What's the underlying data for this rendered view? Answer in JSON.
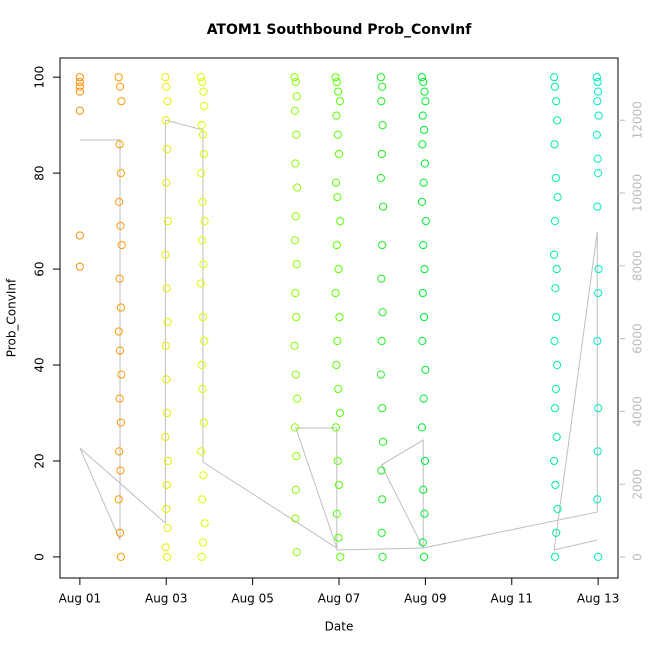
{
  "chart_data": {
    "type": "scatter",
    "title": "ATOM1 Southbound Prob_ConvInf",
    "x_label": "Date",
    "y_label": "Prob_ConvInf",
    "xlim": [
      -0.46,
      12.46
    ],
    "ylim": [
      -4.4,
      104
    ],
    "y2lim": [
      -577,
      13709
    ],
    "xticks": [
      {
        "value": 0,
        "label": "Aug 01"
      },
      {
        "value": 2,
        "label": "Aug 03"
      },
      {
        "value": 4,
        "label": "Aug 05"
      },
      {
        "value": 6,
        "label": "Aug 07"
      },
      {
        "value": 8,
        "label": "Aug 09"
      },
      {
        "value": 10,
        "label": "Aug 11"
      },
      {
        "value": 12,
        "label": "Aug 13"
      }
    ],
    "yticks": [
      0,
      20,
      40,
      60,
      80,
      100
    ],
    "y2ticks": [
      0,
      2000,
      4000,
      6000,
      8000,
      10000,
      12000
    ],
    "y2color": "#bbbbbb",
    "series": [
      {
        "color": "#ff8c00",
        "x": [
          0,
          0,
          0,
          0,
          0,
          0,
          0
        ],
        "values": [
          100,
          99,
          98,
          97,
          93,
          67,
          60.5
        ]
      },
      {
        "color": "#ff9a00",
        "x": [
          0.9,
          0.93,
          0.96,
          0.92,
          0.95,
          0.91,
          0.94,
          0.97,
          0.92,
          0.95,
          0.9,
          0.93,
          0.96,
          0.92,
          0.95,
          0.91,
          0.94,
          0.9,
          0.93,
          0.95
        ],
        "values": [
          100,
          98,
          95,
          86,
          80,
          74,
          69,
          65,
          58,
          52,
          47,
          43,
          38,
          33,
          28,
          22,
          18,
          12,
          5,
          0
        ]
      },
      {
        "color": "#e8ee00",
        "x": [
          1.98,
          2.0,
          2.03,
          1.99,
          2.02,
          2.0,
          2.04,
          1.98,
          2.01,
          2.03,
          1.99,
          2.0,
          2.02,
          1.98,
          2.04,
          2.01,
          2.0,
          2.03,
          1.99,
          2.02
        ],
        "values": [
          100,
          98,
          95,
          91,
          85,
          78,
          70,
          63,
          56,
          49,
          44,
          37,
          30,
          25,
          20,
          15,
          10,
          6,
          2,
          0
        ]
      },
      {
        "color": "#ddff00",
        "x": [
          2.8,
          2.83,
          2.86,
          2.88,
          2.82,
          2.85,
          2.87,
          2.81,
          2.84,
          2.89,
          2.83,
          2.86,
          2.8,
          2.85,
          2.88,
          2.82,
          2.84,
          2.87,
          2.81,
          2.86,
          2.83,
          2.89,
          2.85,
          2.82
        ],
        "values": [
          100,
          99,
          97,
          94,
          90,
          88,
          84,
          80,
          74,
          70,
          66,
          61,
          57,
          50,
          45,
          40,
          35,
          28,
          22,
          17,
          12,
          7,
          3,
          0
        ]
      },
      {
        "color": "#88ff00",
        "x": [
          4.97,
          5.0,
          5.02,
          4.98,
          5.01,
          4.99,
          5.03,
          5.0,
          4.98,
          5.02,
          4.99,
          5.01,
          4.97,
          5.0,
          5.03,
          4.98,
          5.01,
          5.0,
          4.99,
          5.02
        ],
        "values": [
          100,
          99,
          96,
          93,
          88,
          82,
          77,
          71,
          66,
          61,
          55,
          50,
          44,
          38,
          33,
          27,
          21,
          14,
          8,
          1
        ]
      },
      {
        "color": "#55ff00",
        "x": [
          5.92,
          5.95,
          5.98,
          6.02,
          5.94,
          5.97,
          6.0,
          5.93,
          5.96,
          6.03,
          5.95,
          5.99,
          5.92,
          6.01,
          5.96,
          5.94,
          5.98,
          6.02,
          5.93,
          5.97,
          6.0,
          5.95,
          5.99,
          6.03
        ],
        "values": [
          100,
          99,
          97,
          95,
          92,
          88,
          84,
          78,
          75,
          70,
          65,
          60,
          55,
          50,
          45,
          40,
          35,
          30,
          27,
          20,
          15,
          9,
          4,
          0
        ]
      },
      {
        "color": "#22ee22",
        "x": [
          6.97,
          7.0,
          6.98,
          7.01,
          6.99,
          6.97,
          7.02,
          7.0,
          6.98,
          7.01,
          6.99,
          6.97,
          7.0,
          7.02,
          6.98,
          7.0,
          6.99,
          7.01
        ],
        "values": [
          100,
          98,
          95,
          90,
          84,
          79,
          73,
          65,
          58,
          51,
          45,
          38,
          31,
          24,
          18,
          12,
          5,
          0
        ]
      },
      {
        "color": "#00ee30",
        "x": [
          7.92,
          7.95,
          7.98,
          8.0,
          7.94,
          7.97,
          7.93,
          7.99,
          7.96,
          7.92,
          8.01,
          7.95,
          7.98,
          7.94,
          7.97,
          7.93,
          8.0,
          7.96,
          7.92,
          7.99,
          7.95,
          7.98,
          7.94,
          7.97
        ],
        "values": [
          100,
          99,
          97,
          95,
          92,
          89,
          86,
          82,
          78,
          74,
          70,
          65,
          60,
          55,
          50,
          45,
          39,
          33,
          27,
          20,
          14,
          9,
          3,
          0
        ]
      },
      {
        "color": "#00eea0",
        "x": [
          10.98,
          11.0,
          11.03,
          11.05,
          10.99,
          11.02,
          11.06,
          11.0,
          10.98,
          11.04,
          11.01,
          11.03,
          10.99,
          11.05,
          11.02,
          11.0,
          11.04,
          10.98,
          11.01,
          11.06,
          11.03,
          11.0
        ],
        "values": [
          100,
          98,
          95,
          91,
          86,
          79,
          75,
          70,
          63,
          60,
          56,
          50,
          45,
          40,
          35,
          31,
          25,
          20,
          15,
          10,
          5,
          0
        ]
      },
      {
        "color": "#00eec0",
        "x": [
          11.97,
          11.99,
          12.0,
          11.98,
          12.01,
          11.97,
          11.99,
          12.0,
          11.98,
          12.01,
          12.0,
          11.98,
          12.0,
          11.99,
          11.98,
          12.0
        ],
        "values": [
          100,
          99,
          97,
          95,
          92,
          88,
          83,
          80,
          73,
          60,
          55,
          45,
          31,
          22,
          12,
          0
        ]
      },
      {
        "color": "#bebebe",
        "type": "line",
        "axis": "y2",
        "x": [
          0,
          0.93,
          0.93,
          0,
          1.98,
          1.98,
          2.85,
          2.85,
          5.95,
          5.0,
          5.95,
          5.95,
          7.95,
          6.98,
          7.95,
          7.95,
          11.98,
          11.98,
          10.98,
          11.98
        ],
        "values": [
          11456,
          11456,
          467,
          2995,
          934,
          12005,
          11730,
          2610,
          247,
          3544,
          3544,
          192,
          247,
          2527,
          3214,
          247,
          1236,
          8929,
          192,
          467
        ]
      }
    ]
  }
}
